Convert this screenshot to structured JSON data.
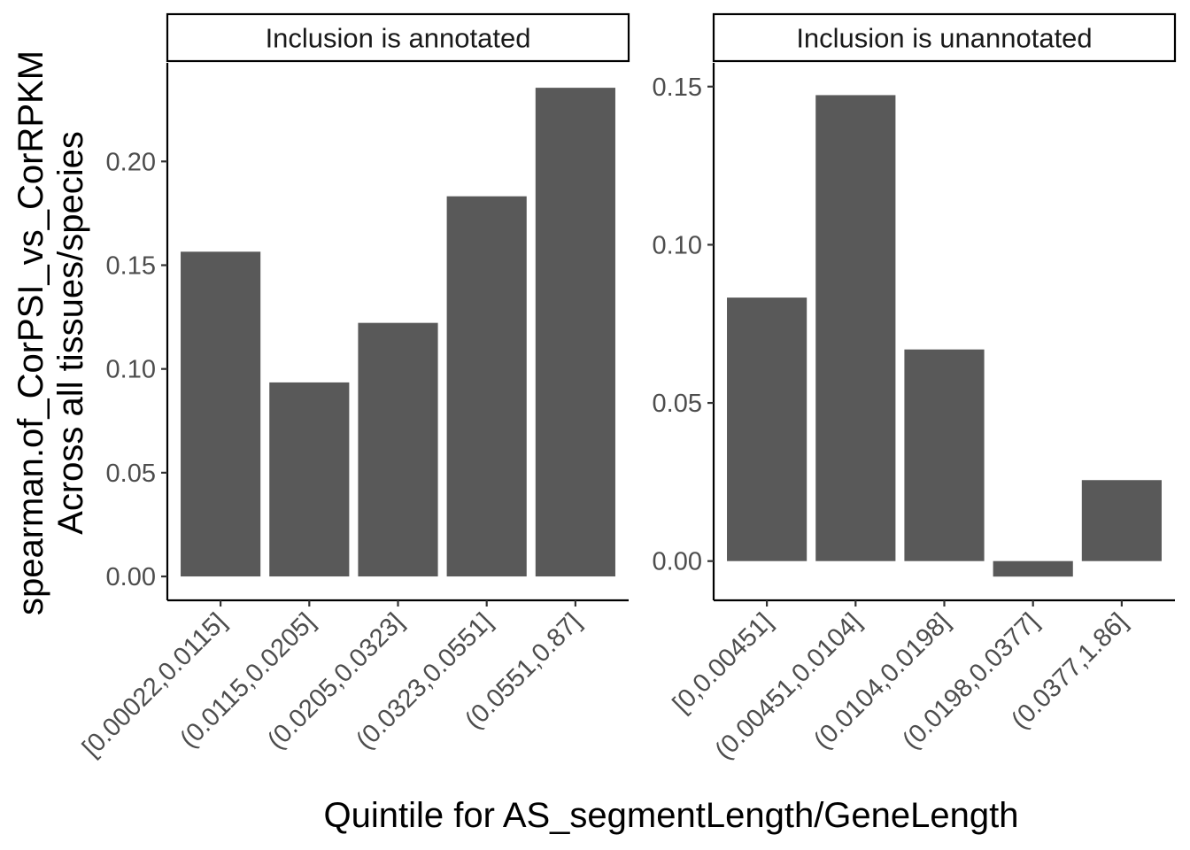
{
  "chart_data": {
    "type": "bar",
    "ylabel_lines": [
      "spearman.of_CorPSI_vs_CorRPKM",
      "Across all tissues/species"
    ],
    "xlabel": "Quintile for AS_segmentLength/GeneLength",
    "bar_color": "#595959",
    "grid": false,
    "legend": "none",
    "panels": [
      {
        "title": "Inclusion is annotated",
        "categories": [
          "[0.00022,0.0115]",
          "(0.0115,0.0205]",
          "(0.0205,0.0323]",
          "(0.0323,0.0551]",
          "(0.0551,0.87]"
        ],
        "values": [
          0.1565,
          0.0935,
          0.1222,
          0.1832,
          0.2355
        ],
        "ylim": [
          -0.0115,
          0.2475
        ],
        "yticks": [
          0.0,
          0.05,
          0.1,
          0.15,
          0.2
        ],
        "ytick_labels": [
          "0.00",
          "0.05",
          "0.10",
          "0.15",
          "0.20"
        ]
      },
      {
        "title": "Inclusion is unannotated",
        "categories": [
          "[0,0.00451]",
          "(0.00451,0.0104]",
          "(0.0104,0.0198]",
          "(0.0198,0.0377]",
          "(0.0377,1.86]"
        ],
        "values": [
          0.0833,
          0.1473,
          0.0669,
          -0.0049,
          0.0256
        ],
        "ylim": [
          -0.0124,
          0.1575
        ],
        "yticks": [
          0.0,
          0.05,
          0.1,
          0.15
        ],
        "ytick_labels": [
          "0.00",
          "0.05",
          "0.10",
          "0.15"
        ]
      }
    ]
  }
}
